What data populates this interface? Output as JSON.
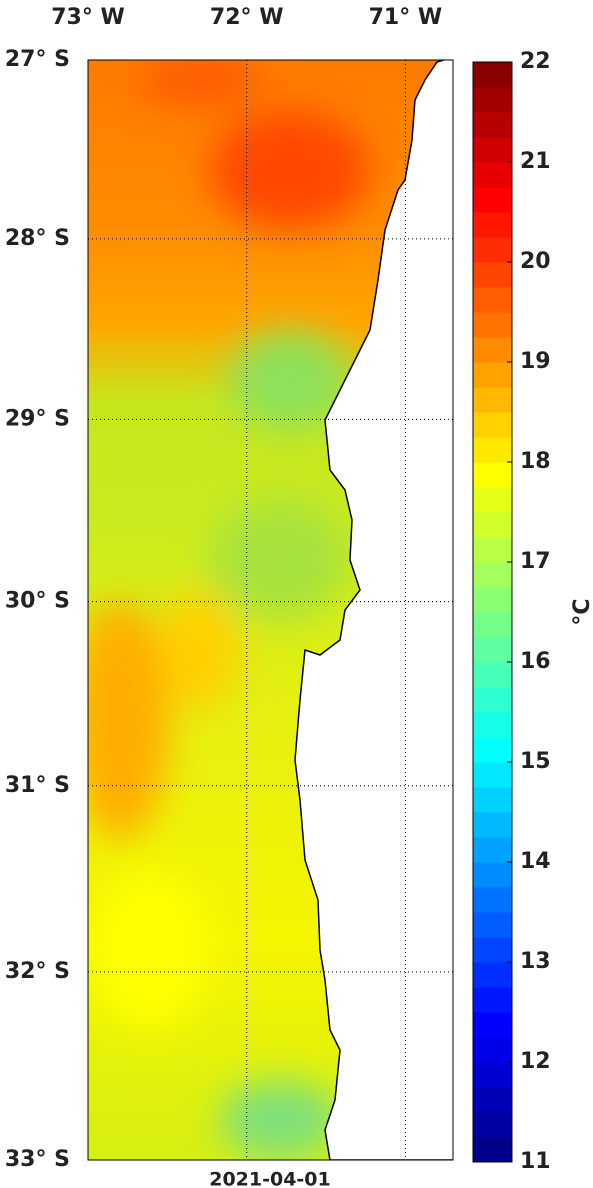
{
  "map": {
    "lon_lim": [
      -73,
      -70.7
    ],
    "lat_lim": [
      -33,
      -27
    ],
    "lon_ticks": [
      {
        "value": -73,
        "label": "73° W"
      },
      {
        "value": -72,
        "label": "72° W"
      },
      {
        "value": -71,
        "label": "71° W"
      }
    ],
    "lat_ticks": [
      {
        "value": -27,
        "label": "27° S"
      },
      {
        "value": -28,
        "label": "28° S"
      },
      {
        "value": -29,
        "label": "29° S"
      },
      {
        "value": -30,
        "label": "30° S"
      },
      {
        "value": -31,
        "label": "31° S"
      },
      {
        "value": -32,
        "label": "32° S"
      },
      {
        "value": -33,
        "label": "33° S"
      }
    ],
    "date": "2021-04-01"
  },
  "colorbar": {
    "label": "°C",
    "lim": [
      11,
      22
    ],
    "ticks": [
      11,
      12,
      13,
      14,
      15,
      16,
      17,
      18,
      19,
      20,
      21,
      22
    ],
    "colormap": "jet"
  }
}
